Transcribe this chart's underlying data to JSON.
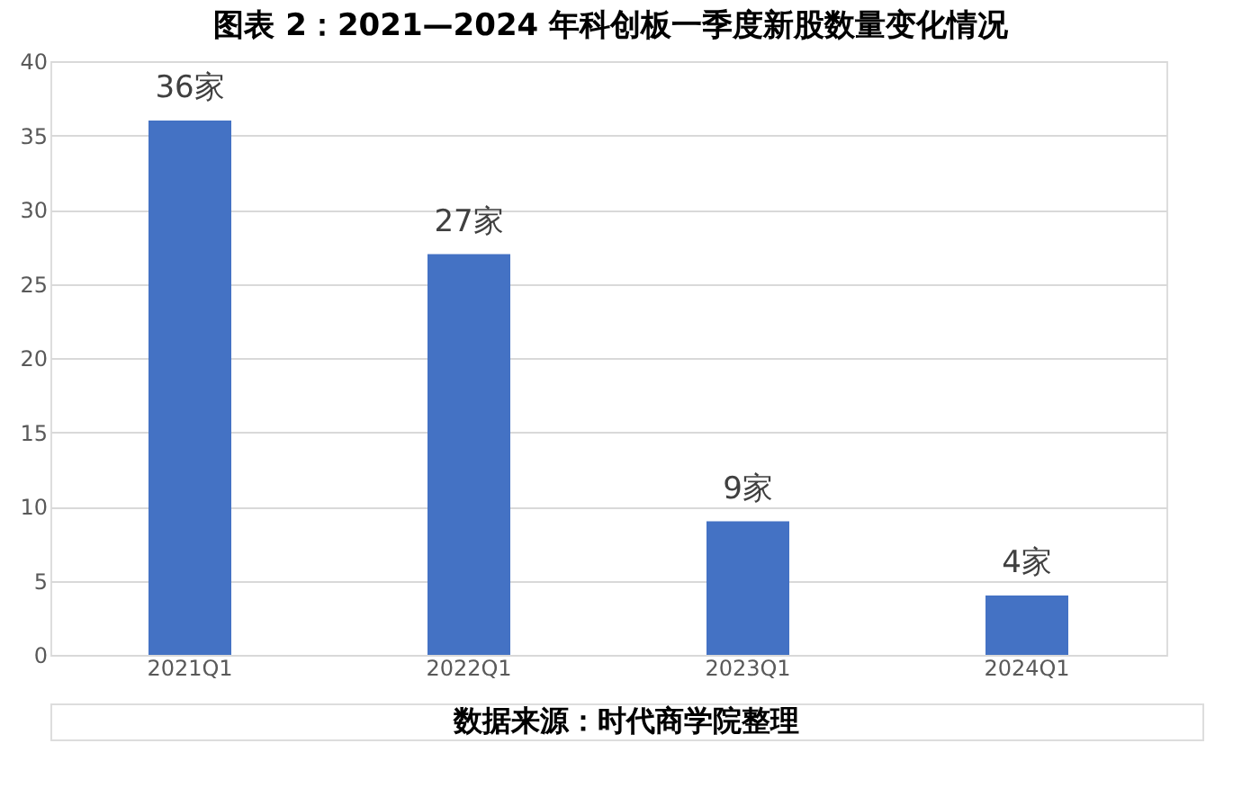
{
  "chart_data": {
    "type": "bar",
    "title": "图表 2：2021—2024 年科创板一季度新股数量变化情况",
    "categories": [
      "2021Q1",
      "2022Q1",
      "2023Q1",
      "2024Q1"
    ],
    "values": [
      36,
      27,
      9,
      4
    ],
    "value_labels": [
      "36家",
      "27家",
      "9家",
      "4家"
    ],
    "color": "#4472c4",
    "ylim": [
      0,
      40
    ],
    "yticks": [
      0,
      5,
      10,
      15,
      20,
      25,
      30,
      35,
      40
    ],
    "grid": "y",
    "annotations": [
      "数据来源：时代商学院整理"
    ]
  }
}
